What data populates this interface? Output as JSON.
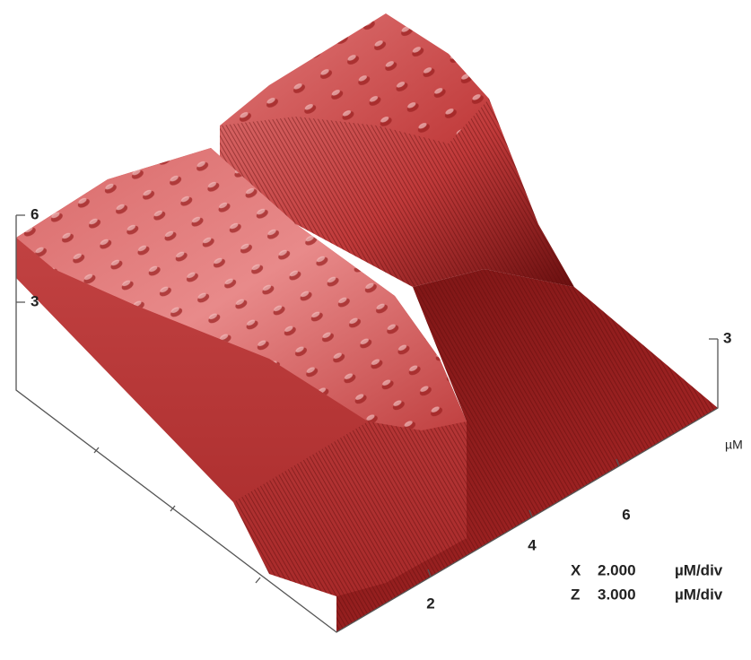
{
  "z_axis": {
    "ticks": [
      "6",
      "3"
    ]
  },
  "right_axis": {
    "tick": "3",
    "unit": "µM"
  },
  "x_axis": {
    "ticks": [
      "2",
      "4",
      "6"
    ]
  },
  "scale": [
    {
      "axis": "X",
      "value": "2.000",
      "unit": "µM/div"
    },
    {
      "axis": "Z",
      "value": "3.000",
      "unit": "µM/div"
    }
  ]
}
